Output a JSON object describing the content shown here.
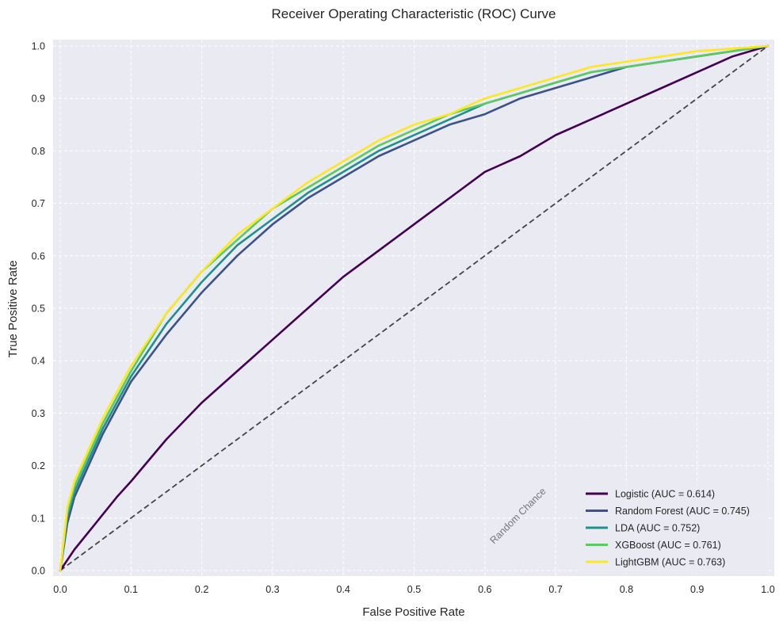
{
  "chart_data": {
    "type": "line",
    "title": "Receiver Operating Characteristic (ROC) Curve",
    "xlabel": "False Positive Rate",
    "ylabel": "True Positive Rate",
    "xlim": [
      0.0,
      1.0
    ],
    "ylim": [
      0.0,
      1.0
    ],
    "xticks": [
      0.0,
      0.1,
      0.2,
      0.3,
      0.4,
      0.5,
      0.6,
      0.7,
      0.8,
      0.9,
      1.0
    ],
    "yticks": [
      0.0,
      0.1,
      0.2,
      0.3,
      0.4,
      0.5,
      0.6,
      0.7,
      0.8,
      0.9,
      1.0
    ],
    "xtick_labels": [
      "0.0",
      "0.1",
      "0.2",
      "0.3",
      "0.4",
      "0.5",
      "0.6",
      "0.7",
      "0.8",
      "0.9",
      "1.0"
    ],
    "ytick_labels": [
      "0.0",
      "0.1",
      "0.2",
      "0.3",
      "0.4",
      "0.5",
      "0.6",
      "0.7",
      "0.8",
      "0.9",
      "1.0"
    ],
    "grid": true,
    "legend_position": "bottom-right",
    "background_color": "#eaeaf2",
    "annotation": {
      "text": "Random Chance",
      "x": 0.65,
      "y": 0.1,
      "rotation_deg": 45
    },
    "baseline": {
      "name": "Random Chance",
      "x": [
        0,
        1
      ],
      "y": [
        0,
        1
      ],
      "color": "#444444",
      "style": "dashed"
    },
    "series": [
      {
        "name": "Logistic (AUC = 0.614)",
        "color": "#440154",
        "x": [
          0.0,
          0.02,
          0.05,
          0.08,
          0.1,
          0.15,
          0.2,
          0.25,
          0.3,
          0.35,
          0.4,
          0.45,
          0.5,
          0.55,
          0.6,
          0.65,
          0.7,
          0.75,
          0.8,
          0.85,
          0.9,
          0.95,
          1.0
        ],
        "y": [
          0.0,
          0.04,
          0.09,
          0.14,
          0.17,
          0.25,
          0.32,
          0.38,
          0.44,
          0.5,
          0.56,
          0.61,
          0.66,
          0.71,
          0.76,
          0.79,
          0.83,
          0.86,
          0.89,
          0.92,
          0.95,
          0.98,
          1.0
        ]
      },
      {
        "name": "Random Forest (AUC = 0.745)",
        "color": "#3b528b",
        "x": [
          0.0,
          0.01,
          0.02,
          0.04,
          0.06,
          0.08,
          0.1,
          0.15,
          0.2,
          0.25,
          0.3,
          0.35,
          0.4,
          0.45,
          0.5,
          0.55,
          0.6,
          0.65,
          0.7,
          0.75,
          0.8,
          0.85,
          0.9,
          0.95,
          1.0
        ],
        "y": [
          0.0,
          0.09,
          0.14,
          0.2,
          0.26,
          0.31,
          0.36,
          0.45,
          0.53,
          0.6,
          0.66,
          0.71,
          0.75,
          0.79,
          0.82,
          0.85,
          0.87,
          0.9,
          0.92,
          0.94,
          0.96,
          0.97,
          0.98,
          0.99,
          1.0
        ]
      },
      {
        "name": "LDA (AUC = 0.752)",
        "color": "#21908d",
        "x": [
          0.0,
          0.01,
          0.02,
          0.04,
          0.06,
          0.08,
          0.1,
          0.15,
          0.2,
          0.25,
          0.3,
          0.35,
          0.4,
          0.45,
          0.5,
          0.55,
          0.6,
          0.65,
          0.7,
          0.75,
          0.8,
          0.85,
          0.9,
          0.95,
          1.0
        ],
        "y": [
          0.0,
          0.1,
          0.15,
          0.21,
          0.27,
          0.32,
          0.37,
          0.47,
          0.55,
          0.62,
          0.67,
          0.72,
          0.76,
          0.8,
          0.83,
          0.86,
          0.89,
          0.91,
          0.93,
          0.95,
          0.96,
          0.97,
          0.98,
          0.99,
          1.0
        ]
      },
      {
        "name": "XGBoost (AUC = 0.761)",
        "color": "#5ec962",
        "x": [
          0.0,
          0.01,
          0.02,
          0.04,
          0.06,
          0.08,
          0.1,
          0.15,
          0.2,
          0.25,
          0.3,
          0.35,
          0.4,
          0.45,
          0.5,
          0.55,
          0.6,
          0.65,
          0.7,
          0.75,
          0.8,
          0.85,
          0.9,
          0.95,
          1.0
        ],
        "y": [
          0.0,
          0.11,
          0.16,
          0.22,
          0.28,
          0.33,
          0.38,
          0.49,
          0.57,
          0.63,
          0.69,
          0.73,
          0.77,
          0.81,
          0.84,
          0.87,
          0.89,
          0.91,
          0.93,
          0.95,
          0.96,
          0.97,
          0.98,
          0.99,
          1.0
        ]
      },
      {
        "name": "LightGBM (AUC = 0.763)",
        "color": "#fde725",
        "x": [
          0.0,
          0.01,
          0.02,
          0.04,
          0.06,
          0.08,
          0.1,
          0.15,
          0.2,
          0.25,
          0.3,
          0.35,
          0.4,
          0.45,
          0.5,
          0.55,
          0.6,
          0.65,
          0.7,
          0.75,
          0.8,
          0.85,
          0.9,
          0.95,
          1.0
        ],
        "y": [
          0.0,
          0.12,
          0.17,
          0.23,
          0.29,
          0.34,
          0.39,
          0.49,
          0.57,
          0.64,
          0.69,
          0.74,
          0.78,
          0.82,
          0.85,
          0.87,
          0.9,
          0.92,
          0.94,
          0.96,
          0.97,
          0.98,
          0.99,
          0.995,
          1.0
        ]
      }
    ]
  }
}
